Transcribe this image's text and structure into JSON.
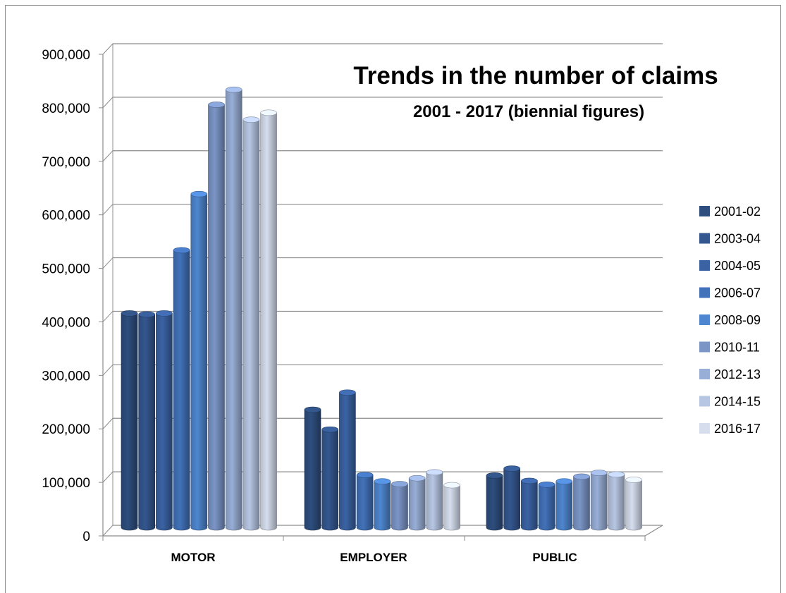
{
  "chart_data": {
    "type": "bar",
    "title": "Trends in the number of claims",
    "subtitle": "2001 - 2017 (biennial figures)",
    "categories": [
      "MOTOR",
      "EMPLOYER",
      "PUBLIC"
    ],
    "series": [
      {
        "name": "2001-02",
        "color": "#2e4e7e",
        "values": [
          400000,
          220000,
          97000
        ]
      },
      {
        "name": "2003-04",
        "color": "#34578f",
        "values": [
          398000,
          183000,
          110000
        ]
      },
      {
        "name": "2004-05",
        "color": "#3b63a3",
        "values": [
          400000,
          252000,
          87000
        ]
      },
      {
        "name": "2006-07",
        "color": "#4272b9",
        "values": [
          518000,
          98000,
          80000
        ]
      },
      {
        "name": "2008-09",
        "color": "#4e86cf",
        "values": [
          623000,
          86000,
          86000
        ]
      },
      {
        "name": "2010-11",
        "color": "#7b95c6",
        "values": [
          790000,
          81000,
          95000
        ]
      },
      {
        "name": "2012-13",
        "color": "#98aed6",
        "values": [
          818000,
          92000,
          102000
        ]
      },
      {
        "name": "2014-15",
        "color": "#b7c6e3",
        "values": [
          762000,
          103000,
          99000
        ]
      },
      {
        "name": "2016-17",
        "color": "#d6deee",
        "values": [
          775000,
          79000,
          89000
        ]
      }
    ],
    "ylim": [
      0,
      900000
    ],
    "yticks": [
      "0",
      "100,000",
      "200,000",
      "300,000",
      "400,000",
      "500,000",
      "600,000",
      "700,000",
      "800,000",
      "900,000"
    ],
    "xlabel": "",
    "ylabel": "",
    "grid": true,
    "legend_position": "right",
    "style": "3d-cylinder"
  }
}
